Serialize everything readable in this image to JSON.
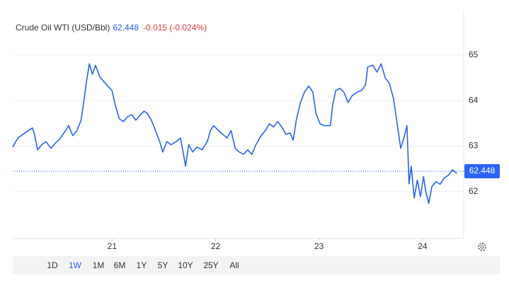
{
  "chart_data": {
    "type": "line",
    "title": "Crude Oil WTI (USD/Bbl)",
    "price": 62.448,
    "change": "-0.015 (-0.024%)",
    "x": [
      20.04,
      20.09,
      20.14,
      20.19,
      20.23,
      20.25,
      20.28,
      20.32,
      20.36,
      20.41,
      20.45,
      20.5,
      20.55,
      20.58,
      20.62,
      20.66,
      20.7,
      20.73,
      20.75,
      20.78,
      20.81,
      20.84,
      20.88,
      20.92,
      20.96,
      21.0,
      21.03,
      21.07,
      21.11,
      21.15,
      21.19,
      21.23,
      21.27,
      21.31,
      21.34,
      21.38,
      21.42,
      21.46,
      21.49,
      21.53,
      21.57,
      21.62,
      21.66,
      21.68,
      21.71,
      21.74,
      21.78,
      21.82,
      21.87,
      21.92,
      21.95,
      21.98,
      22.03,
      22.07,
      22.11,
      22.15,
      22.19,
      22.23,
      22.27,
      22.31,
      22.35,
      22.39,
      22.44,
      22.48,
      22.52,
      22.56,
      22.6,
      22.64,
      22.68,
      22.72,
      22.75,
      22.78,
      22.82,
      22.86,
      22.9,
      22.94,
      22.97,
      23.01,
      23.05,
      23.11,
      23.13,
      23.16,
      23.2,
      23.24,
      23.28,
      23.32,
      23.37,
      23.41,
      23.45,
      23.47,
      23.52,
      23.56,
      23.6,
      23.64,
      23.68,
      23.72,
      23.75,
      23.79,
      23.82,
      23.85,
      23.87,
      23.89,
      23.92,
      23.95,
      23.98,
      24.01,
      24.03,
      24.06,
      24.09,
      24.13,
      24.17,
      24.21,
      24.25,
      24.29,
      24.33
    ],
    "series": [
      {
        "color": "#2962ff",
        "values": [
          62.98,
          63.18,
          63.26,
          63.34,
          63.4,
          63.26,
          62.92,
          63.03,
          63.1,
          62.95,
          63.06,
          63.17,
          63.34,
          63.45,
          63.23,
          63.34,
          63.57,
          64.04,
          64.38,
          64.81,
          64.58,
          64.78,
          64.53,
          64.42,
          64.32,
          64.22,
          63.91,
          63.6,
          63.54,
          63.65,
          63.69,
          63.57,
          63.68,
          63.77,
          63.72,
          63.57,
          63.34,
          63.1,
          62.87,
          63.1,
          63.03,
          63.1,
          63.18,
          62.95,
          62.56,
          63.03,
          62.87,
          62.98,
          62.92,
          63.1,
          63.34,
          63.45,
          63.34,
          63.26,
          63.18,
          63.34,
          62.95,
          62.87,
          62.82,
          62.92,
          62.82,
          63.03,
          63.23,
          63.34,
          63.49,
          63.42,
          63.54,
          63.42,
          63.26,
          63.29,
          63.13,
          63.57,
          63.96,
          64.19,
          64.32,
          64.19,
          63.72,
          63.49,
          63.45,
          63.45,
          63.88,
          64.22,
          64.27,
          64.19,
          63.96,
          64.11,
          64.19,
          64.22,
          64.35,
          64.74,
          64.78,
          64.63,
          64.81,
          64.5,
          64.38,
          64.04,
          63.57,
          62.95,
          63.18,
          63.45,
          62.17,
          62.56,
          61.86,
          62.25,
          61.89,
          62.33,
          62.02,
          61.74,
          62.11,
          62.22,
          62.16,
          62.3,
          62.36,
          62.48,
          62.4
        ]
      }
    ],
    "xlim": [
      20.04,
      24.35
    ],
    "xticks": [
      21,
      22,
      23,
      24
    ],
    "ylim": [
      60.97,
      65.98
    ],
    "yticks": [
      62,
      63,
      64,
      65
    ],
    "grid": true
  },
  "toolbar": {
    "buttons": [
      "1D",
      "1W",
      "1M",
      "6M",
      "1Y",
      "5Y",
      "10Y",
      "25Y",
      "All"
    ],
    "active": "1W"
  }
}
